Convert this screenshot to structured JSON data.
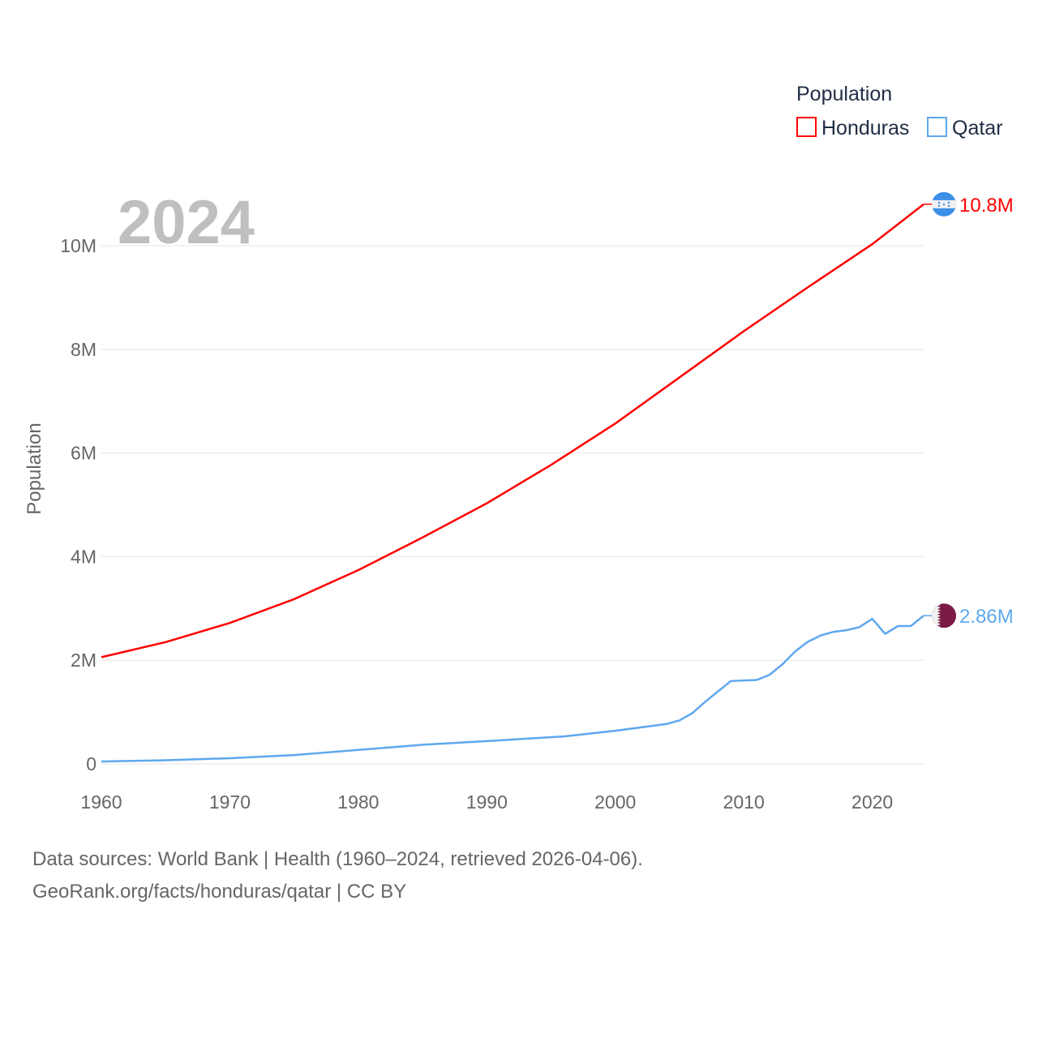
{
  "chart_data": {
    "type": "line",
    "title": "Population",
    "year_label": "2024",
    "xlabel": "",
    "ylabel": "Population",
    "xlim": [
      1960,
      2024
    ],
    "ylim": [
      0,
      11
    ],
    "x_ticks": [
      "1960",
      "1970",
      "1980",
      "1990",
      "2000",
      "2010",
      "2020"
    ],
    "y_ticks": [
      {
        "v": 0,
        "label": "0"
      },
      {
        "v": 2,
        "label": "2M"
      },
      {
        "v": 4,
        "label": "4M"
      },
      {
        "v": 6,
        "label": "6M"
      },
      {
        "v": 8,
        "label": "8M"
      },
      {
        "v": 10,
        "label": "10M"
      }
    ],
    "grid": true,
    "legend_position": "top-right",
    "series": [
      {
        "name": "Honduras",
        "color": "#ff0000",
        "end_label": "10.8M",
        "flag": "honduras-flag",
        "points": [
          [
            1960,
            2.06
          ],
          [
            1965,
            2.35
          ],
          [
            1970,
            2.72
          ],
          [
            1975,
            3.18
          ],
          [
            1980,
            3.74
          ],
          [
            1985,
            4.37
          ],
          [
            1990,
            5.03
          ],
          [
            1995,
            5.77
          ],
          [
            2000,
            6.57
          ],
          [
            2005,
            7.46
          ],
          [
            2010,
            8.35
          ],
          [
            2015,
            9.2
          ],
          [
            2020,
            10.03
          ],
          [
            2024,
            10.8
          ]
        ]
      },
      {
        "name": "Qatar",
        "color": "#5ea8ee",
        "end_label": "2.86M",
        "flag": "qatar-flag",
        "points": [
          [
            1960,
            0.047
          ],
          [
            1965,
            0.07
          ],
          [
            1970,
            0.11
          ],
          [
            1975,
            0.17
          ],
          [
            1980,
            0.27
          ],
          [
            1985,
            0.37
          ],
          [
            1990,
            0.44
          ],
          [
            1996,
            0.53
          ],
          [
            2000,
            0.64
          ],
          [
            2004,
            0.77
          ],
          [
            2005,
            0.84
          ],
          [
            2006,
            0.98
          ],
          [
            2007,
            1.2
          ],
          [
            2008,
            1.4
          ],
          [
            2009,
            1.6
          ],
          [
            2010,
            1.61
          ],
          [
            2011,
            1.62
          ],
          [
            2012,
            1.72
          ],
          [
            2013,
            1.92
          ],
          [
            2014,
            2.17
          ],
          [
            2015,
            2.36
          ],
          [
            2016,
            2.48
          ],
          [
            2017,
            2.55
          ],
          [
            2018,
            2.58
          ],
          [
            2019,
            2.64
          ],
          [
            2020,
            2.8
          ],
          [
            2021,
            2.51
          ],
          [
            2022,
            2.66
          ],
          [
            2023,
            2.66
          ],
          [
            2024,
            2.86
          ]
        ]
      }
    ]
  },
  "footer": {
    "line1": "Data sources: World Bank | Health (1960–2024, retrieved 2026-04-06).",
    "line2": "GeoRank.org/facts/honduras/qatar | CC BY"
  }
}
